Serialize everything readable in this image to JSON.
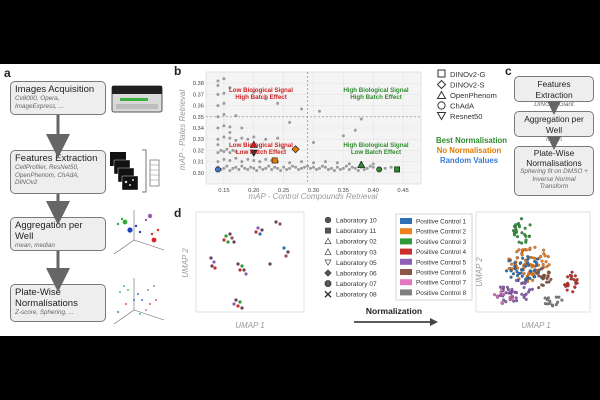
{
  "panel_a": {
    "label": "a",
    "steps": [
      {
        "title": "Images Acquisition",
        "detail": "Cv8000, Opera, ImageExpress, ..."
      },
      {
        "title": "Features Extraction",
        "detail": "CellProfiler, ResNet50, OpenPhenom, ChAdA, DINOv2"
      },
      {
        "title": "Aggregation per Well",
        "detail": "mean, median"
      },
      {
        "title": "Plate-Wise Normalisations",
        "detail": "Z-score, Sphering, ..."
      }
    ]
  },
  "panel_b": {
    "label": "b",
    "legend": [
      {
        "shape": "square",
        "label": "DINOv2-G"
      },
      {
        "shape": "diamond",
        "label": "DINOv2-S"
      },
      {
        "shape": "triangle-up",
        "label": "OpenPhenom"
      },
      {
        "shape": "circle",
        "label": "ChAdA"
      },
      {
        "shape": "triangle-down",
        "label": "Resnet50"
      }
    ],
    "color_legend": [
      {
        "label": "Best Normalisation",
        "color": "#2e8b2e"
      },
      {
        "label": "No Normalisation",
        "color": "#e07b00"
      },
      {
        "label": "Random Values",
        "color": "#3a7bd5"
      }
    ],
    "quadrants": {
      "top_left": [
        "Low Biological Signal",
        "High Batch Effect"
      ],
      "top_right": [
        "High Biological Signal",
        "High Batch Effect"
      ],
      "bottom_left": [
        "Low Biological Signal",
        "Low Batch Effect"
      ],
      "bottom_right": [
        "High Biological Signal",
        "Low Batch Effect"
      ]
    },
    "quadrant_colors": {
      "top_left": "#cc1f1f",
      "top_right": "#2e8b2e",
      "bottom_left": "#cc1f1f",
      "bottom_right": "#2e8b2e"
    }
  },
  "chart_data": {
    "type": "scatter",
    "title": "",
    "xlabel": "mAP - Control Compounds Retrieval",
    "ylabel": "mAP - Plates Retrieval",
    "xlim": [
      0.12,
      0.48
    ],
    "ylim": [
      0.29,
      0.39
    ],
    "xticks": [
      0.15,
      0.2,
      0.25,
      0.3,
      0.35,
      0.4,
      0.45
    ],
    "xtick_labels": [
      "0.15",
      "0.20",
      "0.25",
      "0.30",
      "0.35",
      "0.40",
      "0.45"
    ],
    "yticks": [
      0.3,
      0.31,
      0.32,
      0.33,
      0.34,
      0.35,
      0.36,
      0.37,
      0.38
    ],
    "ytick_labels": [
      "0.30",
      "0.31",
      "0.32",
      "0.33",
      "0.34",
      "0.35",
      "0.36",
      "0.37",
      "0.38"
    ],
    "divider_x": 0.29,
    "divider_y": 0.35,
    "grid": true,
    "series": [
      {
        "color": "#8c8c8c",
        "x": [
          0.14,
          0.145,
          0.15,
          0.155,
          0.16,
          0.165,
          0.17,
          0.175,
          0.18,
          0.185,
          0.19,
          0.195,
          0.2,
          0.205,
          0.21,
          0.215,
          0.22,
          0.225,
          0.23,
          0.235,
          0.24,
          0.245,
          0.25,
          0.255,
          0.26,
          0.265,
          0.27,
          0.275,
          0.28,
          0.285,
          0.29,
          0.295,
          0.3,
          0.305,
          0.31,
          0.315,
          0.32,
          0.325,
          0.33,
          0.335,
          0.34,
          0.345,
          0.35,
          0.355,
          0.36,
          0.365,
          0.37,
          0.375,
          0.38,
          0.385,
          0.39,
          0.395,
          0.4,
          0.41,
          0.42,
          0.43,
          0.44,
          0.14,
          0.15,
          0.16,
          0.17,
          0.18,
          0.19,
          0.2,
          0.21,
          0.22,
          0.23,
          0.24,
          0.26,
          0.28,
          0.3,
          0.32,
          0.34,
          0.36,
          0.38,
          0.4,
          0.14,
          0.145,
          0.15,
          0.155,
          0.16,
          0.165,
          0.17,
          0.14,
          0.15,
          0.16,
          0.17,
          0.18,
          0.19,
          0.2,
          0.22,
          0.24,
          0.14,
          0.15,
          0.16,
          0.18,
          0.14,
          0.15,
          0.17,
          0.14,
          0.15,
          0.14,
          0.15,
          0.14,
          0.16,
          0.14,
          0.15,
          0.14,
          0.16,
          0.2,
          0.25,
          0.3,
          0.35,
          0.37,
          0.26,
          0.31,
          0.38,
          0.24,
          0.2,
          0.22,
          0.28
        ],
        "y": [
          0.305,
          0.303,
          0.304,
          0.306,
          0.302,
          0.304,
          0.305,
          0.303,
          0.306,
          0.304,
          0.303,
          0.305,
          0.304,
          0.302,
          0.305,
          0.303,
          0.304,
          0.306,
          0.303,
          0.305,
          0.304,
          0.302,
          0.305,
          0.303,
          0.304,
          0.306,
          0.305,
          0.303,
          0.304,
          0.305,
          0.306,
          0.304,
          0.305,
          0.303,
          0.304,
          0.306,
          0.305,
          0.303,
          0.304,
          0.302,
          0.305,
          0.303,
          0.304,
          0.306,
          0.303,
          0.305,
          0.304,
          0.302,
          0.305,
          0.303,
          0.304,
          0.306,
          0.305,
          0.303,
          0.304,
          0.305,
          0.304,
          0.31,
          0.312,
          0.311,
          0.313,
          0.31,
          0.312,
          0.311,
          0.31,
          0.312,
          0.311,
          0.31,
          0.309,
          0.31,
          0.309,
          0.31,
          0.309,
          0.308,
          0.309,
          0.308,
          0.318,
          0.32,
          0.319,
          0.321,
          0.318,
          0.32,
          0.319,
          0.33,
          0.332,
          0.331,
          0.329,
          0.331,
          0.33,
          0.332,
          0.33,
          0.331,
          0.34,
          0.342,
          0.341,
          0.34,
          0.35,
          0.352,
          0.351,
          0.36,
          0.362,
          0.37,
          0.371,
          0.378,
          0.376,
          0.382,
          0.384,
          0.325,
          0.336,
          0.318,
          0.322,
          0.327,
          0.333,
          0.338,
          0.345,
          0.355,
          0.348,
          0.362,
          0.372,
          0.366,
          0.357
        ]
      }
    ],
    "highlights": [
      {
        "x": 0.14,
        "y": 0.303,
        "shape": "circle",
        "color": "#3a7bd5"
      },
      {
        "x": 0.2,
        "y": 0.318,
        "shape": "triangle-down",
        "color": "#222222"
      },
      {
        "x": 0.235,
        "y": 0.311,
        "shape": "square",
        "color": "#e07b00"
      },
      {
        "x": 0.27,
        "y": 0.321,
        "shape": "diamond",
        "color": "#e07b00"
      },
      {
        "x": 0.41,
        "y": 0.303,
        "shape": "circle",
        "color": "#2e8b2e"
      },
      {
        "x": 0.44,
        "y": 0.303,
        "shape": "square",
        "color": "#2e8b2e"
      },
      {
        "x": 0.2,
        "y": 0.325,
        "shape": "triangle-up",
        "color": "#cc1f1f"
      },
      {
        "x": 0.38,
        "y": 0.307,
        "shape": "triangle-up",
        "color": "#2e8b2e"
      }
    ]
  },
  "panel_c": {
    "label": "c",
    "steps": [
      {
        "title": "Features Extraction",
        "detail": "DINOv2-Giant"
      },
      {
        "title": "Aggregation per Well",
        "detail": "mean"
      },
      {
        "title": "Plate-Wise Normalisations",
        "detail": "Sphering fit on DMSO + Inverse Normal Transform"
      }
    ]
  },
  "panel_d": {
    "label": "d",
    "left_xlabel": "UMAP 1",
    "left_ylabel": "UMAP 2",
    "right_xlabel": "UMAP 1",
    "right_ylabel": "UMAP 2",
    "arrow_label": "Normalization",
    "lab_legend": [
      {
        "shape": "circle",
        "label": "Laboratory 10"
      },
      {
        "shape": "square",
        "label": "Laboratory 11"
      },
      {
        "shape": "triangle-up",
        "label": "Laboratory 02"
      },
      {
        "shape": "triangle-up",
        "label": "Laboratory 03"
      },
      {
        "shape": "triangle-down",
        "label": "Laboratory 05"
      },
      {
        "shape": "diamond",
        "label": "Laboratory 06"
      },
      {
        "shape": "octagon",
        "label": "Laboratory 07"
      },
      {
        "shape": "cross",
        "label": "Laboratory 08"
      }
    ],
    "control_legend": [
      {
        "label": "Positive Control 1",
        "color": "#2f6fb5"
      },
      {
        "label": "Positive Control 2",
        "color": "#f07f1e"
      },
      {
        "label": "Positive Control 3",
        "color": "#2e9b3a"
      },
      {
        "label": "Positive Control 4",
        "color": "#c9302c"
      },
      {
        "label": "Positive Control 5",
        "color": "#8d5fb8"
      },
      {
        "label": "Positive Control 6",
        "color": "#8c564b"
      },
      {
        "label": "Positive Control 7",
        "color": "#e377c2"
      },
      {
        "label": "Positive Control 8",
        "color": "#7f7f7f"
      }
    ]
  }
}
